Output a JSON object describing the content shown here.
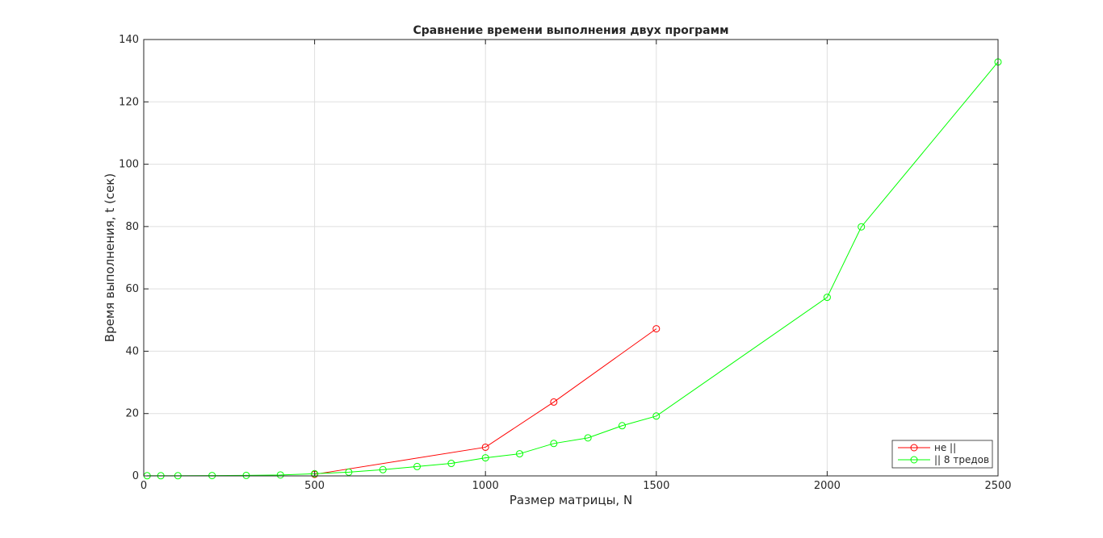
{
  "chart_data": {
    "type": "line",
    "title": "Сравнение времени выполнения двух программ",
    "xlabel": "Размер матрицы, N",
    "ylabel": "Время выполнения, t (сек)",
    "xlim": [
      0,
      2500
    ],
    "ylim": [
      0,
      140
    ],
    "xticks": [
      0,
      500,
      1000,
      1500,
      2000,
      2500
    ],
    "yticks": [
      0,
      20,
      40,
      60,
      80,
      100,
      120,
      140
    ],
    "grid": true,
    "legend_position": "bottom-right",
    "series": [
      {
        "name": "не ||",
        "color": "#ff0000",
        "marker": "circle",
        "x": [
          500,
          1000,
          1200,
          1500
        ],
        "y": [
          0.5,
          9.2,
          23.7,
          47.2
        ]
      },
      {
        "name": "|| 8 тредов",
        "color": "#00ff00",
        "marker": "circle",
        "x": [
          10,
          50,
          100,
          200,
          300,
          400,
          500,
          600,
          700,
          800,
          900,
          1000,
          1100,
          1200,
          1300,
          1400,
          1500,
          2000,
          2100,
          2500
        ],
        "y": [
          0.05,
          0.05,
          0.05,
          0.1,
          0.15,
          0.3,
          0.7,
          1.2,
          2.0,
          3.0,
          4.0,
          5.8,
          7.1,
          10.4,
          12.2,
          16.1,
          19.2,
          57.3,
          79.9,
          132.8
        ]
      }
    ]
  }
}
